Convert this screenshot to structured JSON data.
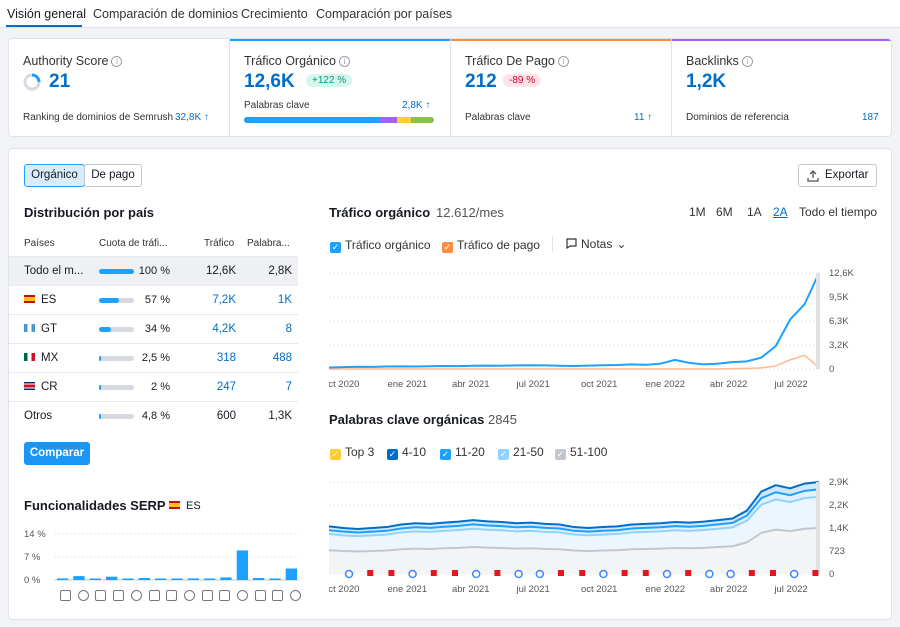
{
  "tabs": [
    "Visión general",
    "Comparación de dominios",
    "Crecimiento",
    "Comparación por países"
  ],
  "kpis": {
    "authority": {
      "title": "Authority Score",
      "value": "21",
      "sub": "Ranking de dominios de Semrush",
      "sub_value": "32,8K ↑"
    },
    "organic": {
      "title": "Tráfico Orgánico",
      "value": "12,6K",
      "badge": "+122 %",
      "sub": "Palabras clave",
      "sub_value": "2,8K ↑"
    },
    "paid": {
      "title": "Tráfico De Pago",
      "value": "212",
      "badge": "-89 %",
      "sub": "Palabras clave",
      "sub_value": "11 ↑"
    },
    "backlinks": {
      "title": "Backlinks",
      "value": "1,2K",
      "sub": "Dominios de referencia",
      "sub_value": "187"
    }
  },
  "toggle": {
    "organic": "Orgánico",
    "paid": "De pago"
  },
  "export_label": "Exportar",
  "country": {
    "title": "Distribución por país",
    "headers": [
      "Países",
      "Cuota de tráfi...",
      "Tráfico",
      "Palabra..."
    ],
    "rows": [
      {
        "name": "Todo el m...",
        "share": "100 %",
        "share_pct": 100,
        "traffic": "12,6K",
        "keywords": "2,8K",
        "flag": ""
      },
      {
        "name": "ES",
        "share": "57 %",
        "share_pct": 57,
        "traffic": "7,2K",
        "keywords": "1K",
        "flag": "es"
      },
      {
        "name": "GT",
        "share": "34 %",
        "share_pct": 34,
        "traffic": "4,2K",
        "keywords": "8",
        "flag": "gt"
      },
      {
        "name": "MX",
        "share": "2,5 %",
        "share_pct": 2.5,
        "traffic": "318",
        "keywords": "488",
        "flag": "mx"
      },
      {
        "name": "CR",
        "share": "2 %",
        "share_pct": 2,
        "traffic": "247",
        "keywords": "7",
        "flag": "cr"
      },
      {
        "name": "Otros",
        "share": "4,8 %",
        "share_pct": 4.8,
        "traffic": "600",
        "keywords": "1,3K",
        "flag": ""
      }
    ],
    "compare_label": "Comparar"
  },
  "serp": {
    "title": "Funcionalidades SERP",
    "country": "ES",
    "yticks": [
      "14 %",
      "7 %",
      "0 %"
    ],
    "values": [
      0.5,
      1.2,
      0.3,
      1,
      0.2,
      0.6,
      0.3,
      0.4,
      0.5,
      0.4,
      0.8,
      9,
      0.6,
      0.4,
      3.5
    ]
  },
  "organic_chart": {
    "title": "Tráfico orgánico",
    "subtitle": "12.612/mes",
    "periods": [
      "1M",
      "6M",
      "1A",
      "2A",
      "Todo el tiempo"
    ],
    "active_period": "2A",
    "legend": [
      "Tráfico orgánico",
      "Tráfico de pago",
      "Notas"
    ],
    "yticks": [
      "12,6K",
      "9,5K",
      "6,3K",
      "3,2K",
      "0"
    ],
    "xticks": [
      "oct 2020",
      "ene 2021",
      "abr 2021",
      "jul 2021",
      "oct 2021",
      "ene 2022",
      "abr 2022",
      "jul 2022"
    ]
  },
  "keywords_chart": {
    "title": "Palabras clave orgánicas",
    "subtitle": "2845",
    "legend": [
      "Top 3",
      "4-10",
      "11-20",
      "21-50",
      "51-100"
    ],
    "yticks": [
      "2,9K",
      "2,2K",
      "1,4K",
      "723",
      "0"
    ],
    "xticks": [
      "oct 2020",
      "ene 2021",
      "abr 2021",
      "jul 2021",
      "oct 2021",
      "ene 2022",
      "abr 2022",
      "jul 2022"
    ]
  },
  "colors": {
    "accent": "#006dca",
    "blue": "#1ea0ff",
    "positive": "#009f81",
    "negative": "#d1002f"
  },
  "chart_data": [
    {
      "type": "line",
      "title": "Tráfico orgánico",
      "ylim": [
        0,
        12600
      ],
      "x": [
        "oct 2020",
        "ene 2021",
        "abr 2021",
        "jul 2021",
        "oct 2021",
        "ene 2022",
        "abr 2022",
        "jul 2022"
      ],
      "series": [
        {
          "name": "Tráfico orgánico",
          "values": [
            200,
            350,
            400,
            500,
            400,
            600,
            900,
            12600
          ]
        },
        {
          "name": "Tráfico de pago",
          "values": [
            0,
            0,
            0,
            0,
            0,
            0,
            100,
            1800
          ]
        }
      ]
    },
    {
      "type": "area",
      "title": "Palabras clave orgánicas",
      "ylim": [
        0,
        2900
      ],
      "x": [
        "oct 2020",
        "ene 2021",
        "abr 2021",
        "jul 2021",
        "oct 2021",
        "ene 2022",
        "abr 2022",
        "jul 2022"
      ],
      "series": [
        {
          "name": "Top 3",
          "values": [
            5,
            5,
            5,
            5,
            5,
            5,
            10,
            20
          ]
        },
        {
          "name": "4-10",
          "values": [
            1500,
            1550,
            1650,
            1600,
            1450,
            1500,
            1600,
            2900
          ]
        },
        {
          "name": "11-20",
          "values": [
            1350,
            1400,
            1500,
            1450,
            1300,
            1350,
            1450,
            2650
          ]
        },
        {
          "name": "21-50",
          "values": [
            1150,
            1200,
            1300,
            1250,
            1100,
            1150,
            1250,
            2400
          ]
        },
        {
          "name": "51-100",
          "values": [
            700,
            750,
            800,
            750,
            700,
            720,
            800,
            1400
          ]
        }
      ]
    }
  ]
}
